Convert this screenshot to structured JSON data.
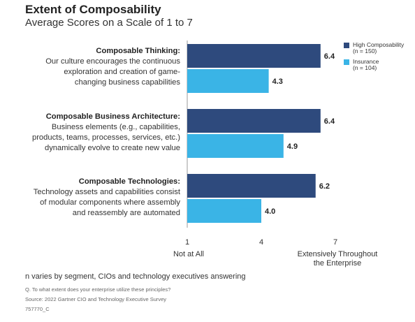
{
  "chart_data": {
    "type": "bar",
    "orientation": "horizontal",
    "title": "Extent of Composability",
    "subtitle": "Average Scores on a Scale of 1 to 7",
    "categories": [
      {
        "name": "Composable Thinking:",
        "lines": [
          "Our culture encourages the continuous",
          "exploration and creation of game-",
          "changing business capabilities"
        ]
      },
      {
        "name": "Composable Business Architecture:",
        "lines": [
          "Business elements (e.g., capabilities,",
          "products, teams, processes, services, etc.)",
          "dynamically evolve to create new value"
        ]
      },
      {
        "name": "Composable Technologies:",
        "lines": [
          "Technology assets and capabilities consist",
          "of modular components where assembly",
          "and reassembly are automated"
        ]
      }
    ],
    "series": [
      {
        "name": "High Composability",
        "sample": "(n = 150)",
        "color": "#2e4a7d",
        "values": [
          6.4,
          6.4,
          6.2
        ],
        "labels": [
          "6.4",
          "6.4",
          "6.2"
        ]
      },
      {
        "name": "Insurance",
        "sample": "(n = 104)",
        "color": "#3ab4e6",
        "values": [
          4.3,
          4.9,
          4.0
        ],
        "labels": [
          "4.3",
          "4.9",
          "4.0"
        ]
      }
    ],
    "xlim": [
      1,
      7
    ],
    "xticks": [
      "1",
      "4",
      "7"
    ],
    "axis_captions": {
      "min": "Not at All",
      "max_line1": "Extensively Throughout",
      "max_line2": "the Enterprise"
    },
    "legend_position": "top-right"
  },
  "footnote": "n varies by segment, CIOs and technology executives answering",
  "question": "Q. To what extent does your enterprise utilize these principles?",
  "source": "Source: 2022 Gartner CIO and Technology Executive Survey",
  "id": "757770_C"
}
